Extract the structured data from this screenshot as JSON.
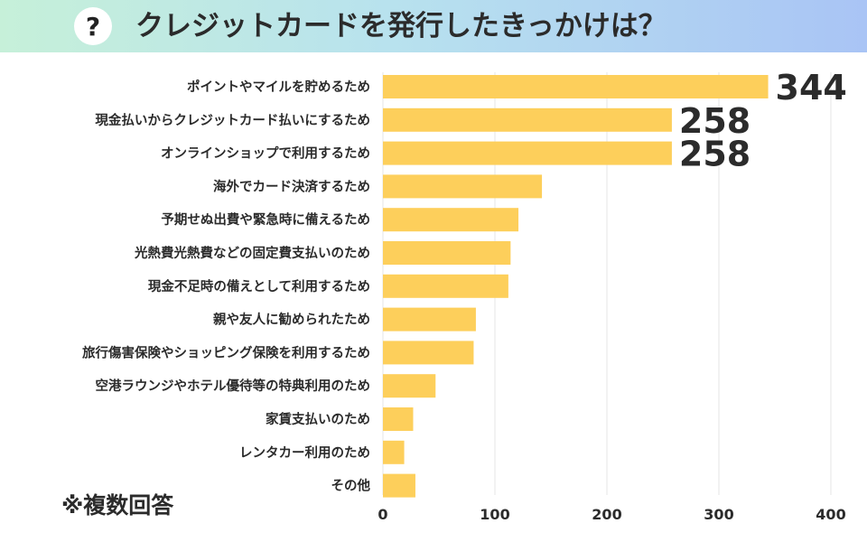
{
  "header": {
    "icon": "question-mark-icon",
    "icon_glyph": "?",
    "title": "クレジットカードを発行したきっかけは？"
  },
  "note": "※複数回答",
  "colors": {
    "bar": "#fdcf5b",
    "grid": "#e6e6e6",
    "text": "#2b2b2b"
  },
  "chart_data": {
    "type": "bar",
    "orientation": "horizontal",
    "title": "クレジットカードを発行したきっかけは？",
    "xlabel": "",
    "ylabel": "",
    "xlim": [
      0,
      400
    ],
    "xticks": [
      0,
      100,
      200,
      300,
      400
    ],
    "grid": true,
    "categories": [
      "ポイントやマイルを貯めるため",
      "現金払いからクレジットカード払いにするため",
      "オンラインショップで利用するため",
      "海外でカード決済するため",
      "予期せぬ出費や緊急時に備えるため",
      "光熱費光熱費などの固定費支払いのため",
      "現金不足時の備えとして利用するため",
      "親や友人に勧められたため",
      "旅行傷害保険やショッピング保険を利用するため",
      "空港ラウンジやホテル優待等の特典利用のため",
      "家賃支払いのため",
      "レンタカー利用のため",
      "その他"
    ],
    "values": [
      344,
      258,
      258,
      142,
      121,
      114,
      112,
      83,
      81,
      47,
      27,
      19,
      29
    ],
    "data_labels": [
      "344",
      "258",
      "258",
      "",
      "",
      "",
      "",
      "",
      "",
      "",
      "",
      "",
      ""
    ]
  }
}
